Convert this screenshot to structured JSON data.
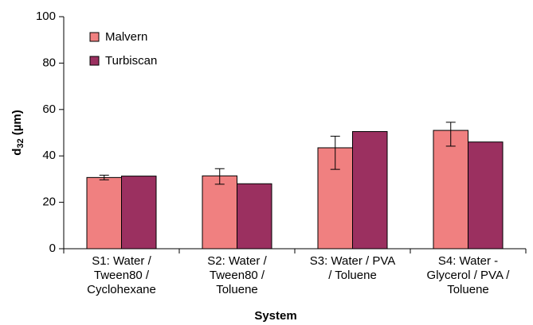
{
  "chart_data": {
    "type": "bar",
    "xlabel": "System",
    "ylabel": [
      "d",
      "32",
      "(µm)"
    ],
    "categories": [
      [
        "S1: Water /",
        "Tween80 /",
        "Cyclohexane"
      ],
      [
        "S2: Water /",
        "Tween80 /",
        "Toluene"
      ],
      [
        "S3: Water / PVA",
        "/ Toluene"
      ],
      [
        "S4: Water -",
        "Glycerol / PVA /",
        "Toluene"
      ]
    ],
    "series": [
      {
        "name": "Malvern",
        "color": "#f08080",
        "values": [
          30.7,
          31.4,
          43.5,
          51.0
        ],
        "error_minus": [
          1.0,
          3.6,
          9.3,
          6.8
        ],
        "error_plus": [
          1.0,
          3.1,
          5.0,
          3.5
        ]
      },
      {
        "name": "Turbiscan",
        "color": "#9b3060",
        "values": [
          31.3,
          28.0,
          50.5,
          46.0
        ]
      }
    ],
    "ylim": [
      0,
      100
    ],
    "yticks": [
      0,
      20,
      40,
      60,
      80,
      100
    ],
    "legend": "upper left"
  }
}
